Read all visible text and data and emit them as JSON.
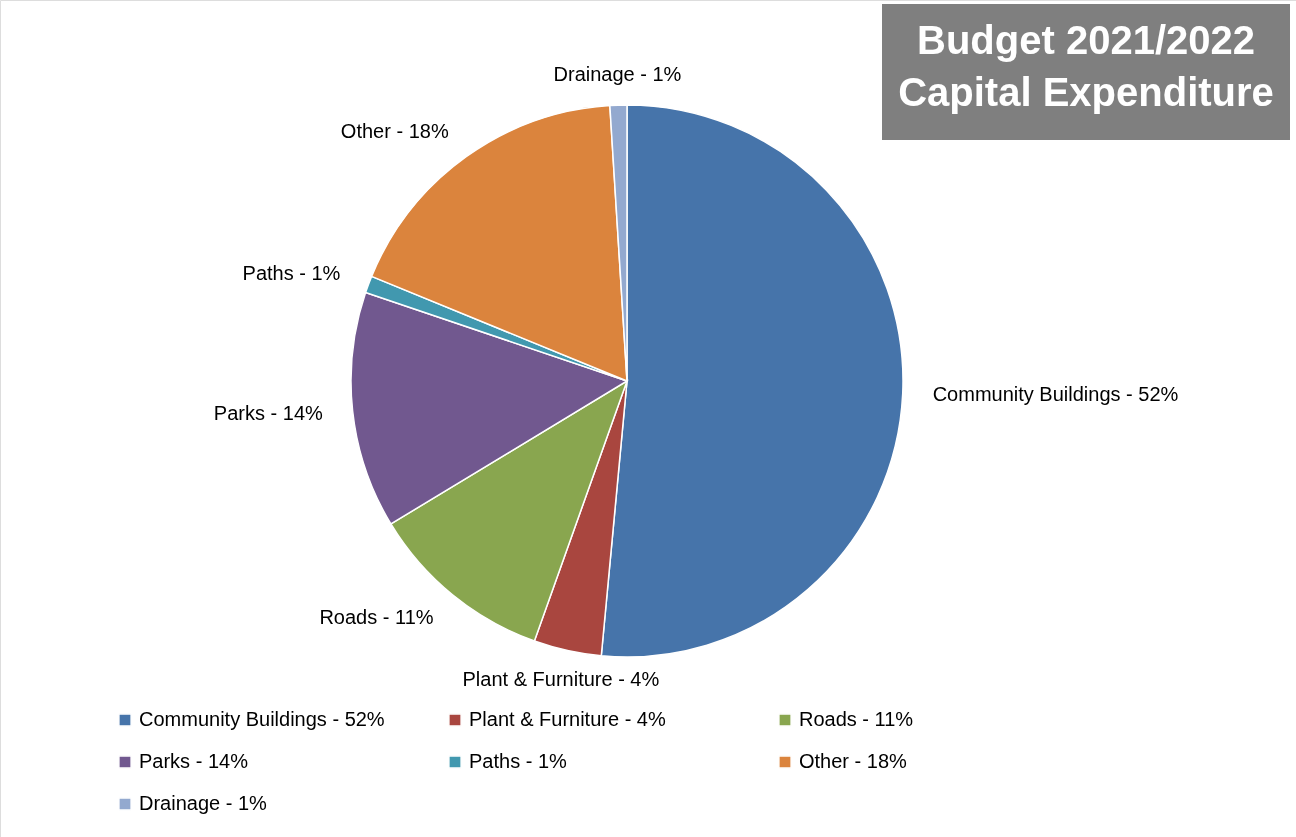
{
  "chart_data": {
    "type": "pie",
    "title": "Budget 2021/2022\nCapital Expenditure",
    "categories": [
      "Community Buildings - 52%",
      "Plant & Furniture - 4%",
      "Roads - 11%",
      "Parks - 14%",
      "Paths - 1%",
      "Other - 18%",
      "Drainage - 1%"
    ],
    "values": [
      52,
      4,
      11,
      14,
      1,
      18,
      1
    ],
    "colors": [
      "#4674aa",
      "#a9463f",
      "#89a64f",
      "#71588f",
      "#4198af",
      "#db843d",
      "#93a9cf"
    ],
    "legend": "bottom"
  }
}
